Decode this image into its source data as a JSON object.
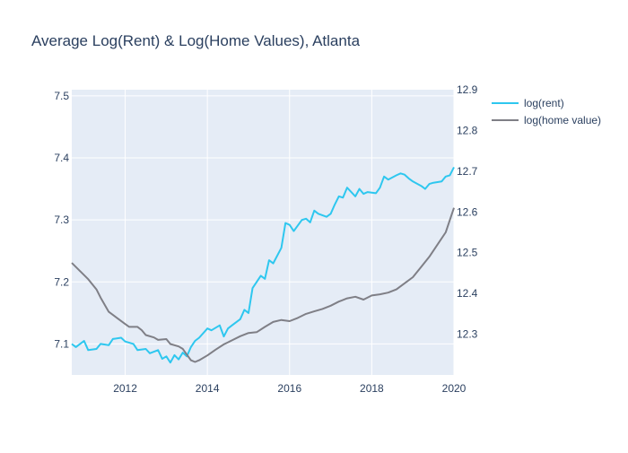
{
  "chart_data": {
    "type": "line",
    "title": "Average Log(Rent) & Log(Home Values), Atlanta",
    "x_axis": {
      "range": [
        2010.7,
        2020.0
      ],
      "ticks": [
        2012,
        2014,
        2016,
        2018,
        2020
      ],
      "tick_labels": [
        "2012",
        "2014",
        "2016",
        "2018",
        "2020"
      ]
    },
    "y_axis_left": {
      "range": [
        7.05,
        7.51
      ],
      "ticks": [
        7.1,
        7.2,
        7.3,
        7.4,
        7.5
      ],
      "tick_labels": [
        "7.1",
        "7.2",
        "7.3",
        "7.4",
        "7.5"
      ]
    },
    "y_axis_right": {
      "range": [
        12.2,
        12.9
      ],
      "ticks": [
        12.3,
        12.4,
        12.5,
        12.6,
        12.7,
        12.8,
        12.9
      ],
      "tick_labels": [
        "12.3",
        "12.4",
        "12.5",
        "12.6",
        "12.7",
        "12.8",
        "12.9"
      ]
    },
    "grid": true,
    "legend_position": "top-right",
    "colors": {
      "plot_bg": "#e5ecf6",
      "grid": "#ffffff",
      "rent": "#2ec7ef",
      "home": "#7f7f86",
      "text": "#2a3f5f"
    },
    "series": [
      {
        "name": "log(rent)",
        "axis": "left",
        "color": "#2ec7ef",
        "points": [
          [
            2010.7,
            7.1
          ],
          [
            2010.8,
            7.095
          ],
          [
            2011.0,
            7.105
          ],
          [
            2011.1,
            7.09
          ],
          [
            2011.3,
            7.092
          ],
          [
            2011.4,
            7.1
          ],
          [
            2011.6,
            7.098
          ],
          [
            2011.7,
            7.108
          ],
          [
            2011.9,
            7.11
          ],
          [
            2012.0,
            7.104
          ],
          [
            2012.2,
            7.1
          ],
          [
            2012.3,
            7.09
          ],
          [
            2012.5,
            7.092
          ],
          [
            2012.6,
            7.085
          ],
          [
            2012.8,
            7.09
          ],
          [
            2012.9,
            7.076
          ],
          [
            2013.0,
            7.08
          ],
          [
            2013.1,
            7.07
          ],
          [
            2013.2,
            7.082
          ],
          [
            2013.3,
            7.075
          ],
          [
            2013.4,
            7.086
          ],
          [
            2013.5,
            7.08
          ],
          [
            2013.6,
            7.095
          ],
          [
            2013.7,
            7.105
          ],
          [
            2013.8,
            7.11
          ],
          [
            2014.0,
            7.125
          ],
          [
            2014.1,
            7.122
          ],
          [
            2014.3,
            7.13
          ],
          [
            2014.4,
            7.112
          ],
          [
            2014.5,
            7.125
          ],
          [
            2014.6,
            7.13
          ],
          [
            2014.8,
            7.14
          ],
          [
            2014.9,
            7.155
          ],
          [
            2015.0,
            7.15
          ],
          [
            2015.1,
            7.19
          ],
          [
            2015.3,
            7.21
          ],
          [
            2015.4,
            7.205
          ],
          [
            2015.5,
            7.235
          ],
          [
            2015.6,
            7.23
          ],
          [
            2015.8,
            7.255
          ],
          [
            2015.9,
            7.295
          ],
          [
            2016.0,
            7.292
          ],
          [
            2016.1,
            7.282
          ],
          [
            2016.3,
            7.3
          ],
          [
            2016.4,
            7.302
          ],
          [
            2016.5,
            7.296
          ],
          [
            2016.6,
            7.315
          ],
          [
            2016.7,
            7.31
          ],
          [
            2016.9,
            7.305
          ],
          [
            2017.0,
            7.31
          ],
          [
            2017.1,
            7.325
          ],
          [
            2017.2,
            7.338
          ],
          [
            2017.3,
            7.336
          ],
          [
            2017.4,
            7.352
          ],
          [
            2017.6,
            7.338
          ],
          [
            2017.7,
            7.35
          ],
          [
            2017.8,
            7.342
          ],
          [
            2017.9,
            7.345
          ],
          [
            2018.1,
            7.343
          ],
          [
            2018.2,
            7.352
          ],
          [
            2018.3,
            7.37
          ],
          [
            2018.4,
            7.365
          ],
          [
            2018.6,
            7.372
          ],
          [
            2018.7,
            7.375
          ],
          [
            2018.8,
            7.373
          ],
          [
            2018.9,
            7.367
          ],
          [
            2019.0,
            7.362
          ],
          [
            2019.2,
            7.355
          ],
          [
            2019.3,
            7.35
          ],
          [
            2019.4,
            7.358
          ],
          [
            2019.5,
            7.36
          ],
          [
            2019.7,
            7.362
          ],
          [
            2019.8,
            7.37
          ],
          [
            2019.9,
            7.372
          ],
          [
            2020.0,
            7.385
          ]
        ]
      },
      {
        "name": "log(home value)",
        "axis": "right",
        "color": "#7f7f86",
        "points": [
          [
            2010.7,
            12.475
          ],
          [
            2010.9,
            12.455
          ],
          [
            2011.1,
            12.435
          ],
          [
            2011.3,
            12.41
          ],
          [
            2011.4,
            12.39
          ],
          [
            2011.6,
            12.355
          ],
          [
            2011.8,
            12.34
          ],
          [
            2012.0,
            12.325
          ],
          [
            2012.1,
            12.318
          ],
          [
            2012.3,
            12.318
          ],
          [
            2012.4,
            12.31
          ],
          [
            2012.5,
            12.298
          ],
          [
            2012.7,
            12.292
          ],
          [
            2012.8,
            12.286
          ],
          [
            2013.0,
            12.288
          ],
          [
            2013.1,
            12.276
          ],
          [
            2013.3,
            12.27
          ],
          [
            2013.4,
            12.264
          ],
          [
            2013.5,
            12.25
          ],
          [
            2013.6,
            12.236
          ],
          [
            2013.7,
            12.232
          ],
          [
            2013.8,
            12.236
          ],
          [
            2014.0,
            12.248
          ],
          [
            2014.2,
            12.262
          ],
          [
            2014.4,
            12.275
          ],
          [
            2014.6,
            12.285
          ],
          [
            2014.8,
            12.295
          ],
          [
            2015.0,
            12.303
          ],
          [
            2015.2,
            12.305
          ],
          [
            2015.4,
            12.318
          ],
          [
            2015.6,
            12.33
          ],
          [
            2015.8,
            12.335
          ],
          [
            2016.0,
            12.332
          ],
          [
            2016.2,
            12.34
          ],
          [
            2016.4,
            12.35
          ],
          [
            2016.6,
            12.356
          ],
          [
            2016.8,
            12.362
          ],
          [
            2017.0,
            12.37
          ],
          [
            2017.2,
            12.38
          ],
          [
            2017.4,
            12.388
          ],
          [
            2017.6,
            12.392
          ],
          [
            2017.8,
            12.385
          ],
          [
            2018.0,
            12.395
          ],
          [
            2018.2,
            12.398
          ],
          [
            2018.4,
            12.402
          ],
          [
            2018.6,
            12.41
          ],
          [
            2018.8,
            12.425
          ],
          [
            2019.0,
            12.44
          ],
          [
            2019.2,
            12.465
          ],
          [
            2019.4,
            12.49
          ],
          [
            2019.6,
            12.52
          ],
          [
            2019.8,
            12.55
          ],
          [
            2020.0,
            12.61
          ]
        ]
      }
    ]
  }
}
